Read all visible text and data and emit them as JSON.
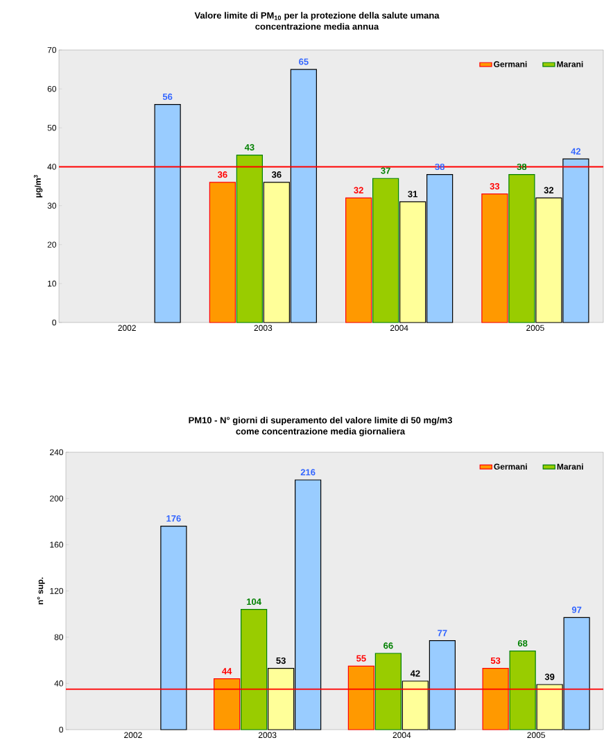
{
  "chart_data": [
    {
      "type": "bar",
      "title": "Valore limite di PM$_{10}$ per la protezione della salute umana\nconcentrazione media annua",
      "ylabel": "μg/m$^{3}$",
      "categories": [
        "2002",
        "2003",
        "2004",
        "2005"
      ],
      "series": [
        {
          "name": "Germani",
          "color": "#ff9900",
          "values": [
            null,
            36,
            32,
            33
          ]
        },
        {
          "name": "Marani",
          "color": "#99cc00",
          "values": [
            null,
            43,
            37,
            38
          ]
        },
        {
          "color": "#ffff99",
          "values": [
            null,
            36,
            31,
            32
          ]
        },
        {
          "color": "#99ccff",
          "values": [
            56,
            65,
            38,
            42
          ]
        }
      ],
      "ylim": [
        0,
        70
      ],
      "yticks": [
        0,
        10,
        20,
        30,
        40,
        50,
        60,
        70
      ],
      "ref_lines": [
        {
          "axis": "y",
          "value": 40,
          "color": "#ff0000"
        }
      ],
      "data_labels": true,
      "legend": "top right"
    },
    {
      "type": "bar",
      "title": "PM10 - N° giorni di superamento del valore limite di 50 mg/m3\ncome  concentrazione media giornaliera",
      "ylabel": "n° sup.",
      "categories": [
        "2002",
        "2003",
        "2004",
        "2005"
      ],
      "series": [
        {
          "name": "Germani",
          "color": "#ff9900",
          "values": [
            null,
            44,
            55,
            53
          ]
        },
        {
          "name": "Marani",
          "color": "#99cc00",
          "values": [
            null,
            104,
            66,
            68
          ]
        },
        {
          "color": "#ffff99",
          "values": [
            null,
            53,
            42,
            39
          ]
        },
        {
          "color": "#99ccff",
          "values": [
            176,
            216,
            77,
            97
          ]
        }
      ],
      "ylim": [
        0,
        240
      ],
      "yticks": [
        0,
        40,
        80,
        120,
        160,
        200,
        240
      ],
      "ref_lines": [
        {
          "axis": "y",
          "value": 35,
          "color": "#ff0000"
        }
      ],
      "data_labels": true,
      "legend": "top right"
    }
  ]
}
